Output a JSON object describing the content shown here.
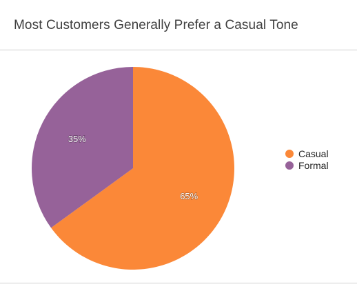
{
  "chart_data": {
    "type": "pie",
    "title": "Most Customers Generally Prefer a Casual Tone",
    "slices": [
      {
        "label": "Casual",
        "value": 65,
        "display": "65%",
        "color": "#fb8838"
      },
      {
        "label": "Formal",
        "value": 35,
        "display": "35%",
        "color": "#966299"
      }
    ],
    "start_angle_deg": 0,
    "direction": "clockwise",
    "legend_position": "right"
  }
}
